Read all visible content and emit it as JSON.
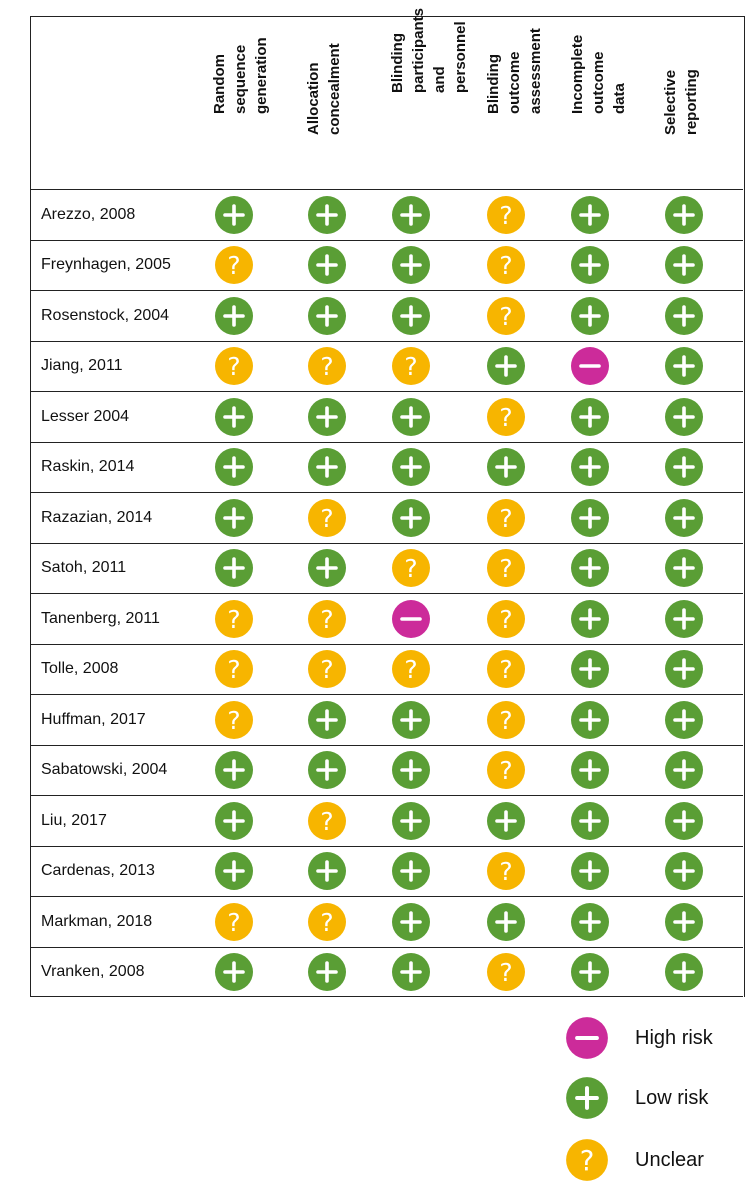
{
  "chart_data": {
    "type": "table",
    "title": "",
    "domains": [
      {
        "key": "random",
        "label": "Random\nsequence\ngeneration"
      },
      {
        "key": "allocation",
        "label": "Allocation\nconcealment"
      },
      {
        "key": "blind_part",
        "label": "Blinding\nparticipants and\npersonnel"
      },
      {
        "key": "blind_outcome",
        "label": "Blinding\noutcome\nassessment"
      },
      {
        "key": "incomplete",
        "label": "Incomplete\noutcome data"
      },
      {
        "key": "selective",
        "label": "Selective\nreporting"
      }
    ],
    "studies": [
      {
        "study": "Arezzo, 2008",
        "ratings": [
          "low",
          "low",
          "low",
          "unclear",
          "low",
          "low"
        ]
      },
      {
        "study": "Freynhagen, 2005",
        "ratings": [
          "unclear",
          "low",
          "low",
          "unclear",
          "low",
          "low"
        ]
      },
      {
        "study": "Rosenstock, 2004",
        "ratings": [
          "low",
          "low",
          "low",
          "unclear",
          "low",
          "low"
        ]
      },
      {
        "study": "Jiang, 2011",
        "ratings": [
          "unclear",
          "unclear",
          "unclear",
          "low",
          "high",
          "low"
        ]
      },
      {
        "study": "Lesser 2004",
        "ratings": [
          "low",
          "low",
          "low",
          "unclear",
          "low",
          "low"
        ]
      },
      {
        "study": "Raskin, 2014",
        "ratings": [
          "low",
          "low",
          "low",
          "low",
          "low",
          "low"
        ]
      },
      {
        "study": "Razazian, 2014",
        "ratings": [
          "low",
          "unclear",
          "low",
          "unclear",
          "low",
          "low"
        ]
      },
      {
        "study": "Satoh, 2011",
        "ratings": [
          "low",
          "low",
          "unclear",
          "unclear",
          "low",
          "low"
        ]
      },
      {
        "study": "Tanenberg, 2011",
        "ratings": [
          "unclear",
          "unclear",
          "high",
          "unclear",
          "low",
          "low"
        ]
      },
      {
        "study": "Tolle, 2008",
        "ratings": [
          "unclear",
          "unclear",
          "unclear",
          "unclear",
          "low",
          "low"
        ]
      },
      {
        "study": "Huffman, 2017",
        "ratings": [
          "unclear",
          "low",
          "low",
          "unclear",
          "low",
          "low"
        ]
      },
      {
        "study": "Sabatowski, 2004",
        "ratings": [
          "low",
          "low",
          "low",
          "unclear",
          "low",
          "low"
        ]
      },
      {
        "study": "Liu, 2017",
        "ratings": [
          "low",
          "unclear",
          "low",
          "low",
          "low",
          "low"
        ]
      },
      {
        "study": "Cardenas, 2013",
        "ratings": [
          "low",
          "low",
          "low",
          "unclear",
          "low",
          "low"
        ]
      },
      {
        "study": "Markman, 2018",
        "ratings": [
          "unclear",
          "unclear",
          "low",
          "low",
          "low",
          "low"
        ]
      },
      {
        "study": "Vranken, 2008",
        "ratings": [
          "low",
          "low",
          "low",
          "unclear",
          "low",
          "low"
        ]
      }
    ],
    "legend": [
      {
        "key": "high",
        "label": "High risk"
      },
      {
        "key": "low",
        "label": "Low risk"
      },
      {
        "key": "unclear",
        "label": "Unclear"
      }
    ]
  },
  "colors": {
    "low": "#5a9e35",
    "unclear": "#f7b500",
    "high": "#cc2b9a",
    "symbol": "#ffffff"
  },
  "symbols": {
    "low": "+",
    "unclear": "?",
    "high": "−"
  }
}
